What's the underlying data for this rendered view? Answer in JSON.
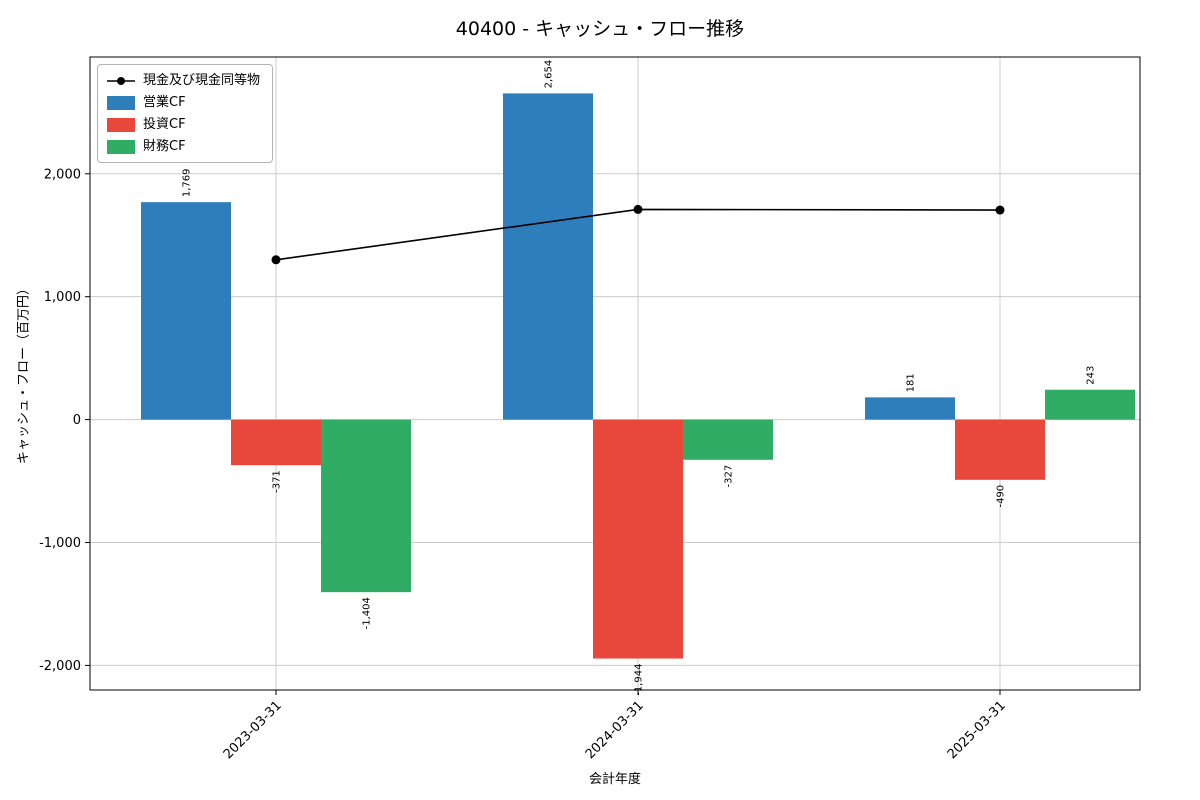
{
  "title": "40400 - キャッシュ・フロー推移",
  "axes": {
    "xlabel": "会計年度",
    "ylabel": "キャッシュ・フロー（百万円）"
  },
  "colors": {
    "operating": "#2e7ebc",
    "investing": "#e8473c",
    "financing": "#31ac64",
    "line": "#000000",
    "grid": "#cccccc",
    "spine": "#000000"
  },
  "chart_data": {
    "type": "bar+line",
    "title": "40400 - キャッシュ・フロー推移",
    "xlabel": "会計年度",
    "ylabel": "キャッシュ・フロー（百万円）",
    "categories": [
      "2023-03-31",
      "2024-03-31",
      "2025-03-31"
    ],
    "series": [
      {
        "name": "営業CF",
        "key": "operating",
        "type": "bar",
        "values": [
          1769,
          2654,
          181
        ]
      },
      {
        "name": "投資CF",
        "key": "investing",
        "type": "bar",
        "values": [
          -371,
          -1944,
          -490
        ]
      },
      {
        "name": "財務CF",
        "key": "financing",
        "type": "bar",
        "values": [
          -1404,
          -327,
          243
        ]
      },
      {
        "name": "現金及び現金同等物",
        "key": "cash",
        "type": "line",
        "values": [
          1300,
          1710,
          1705
        ]
      }
    ],
    "yticks": [
      -2000,
      -1000,
      0,
      1000,
      2000
    ],
    "ylim": [
      -2200,
      2950
    ],
    "grid": true,
    "legend_position": "upper-left"
  }
}
